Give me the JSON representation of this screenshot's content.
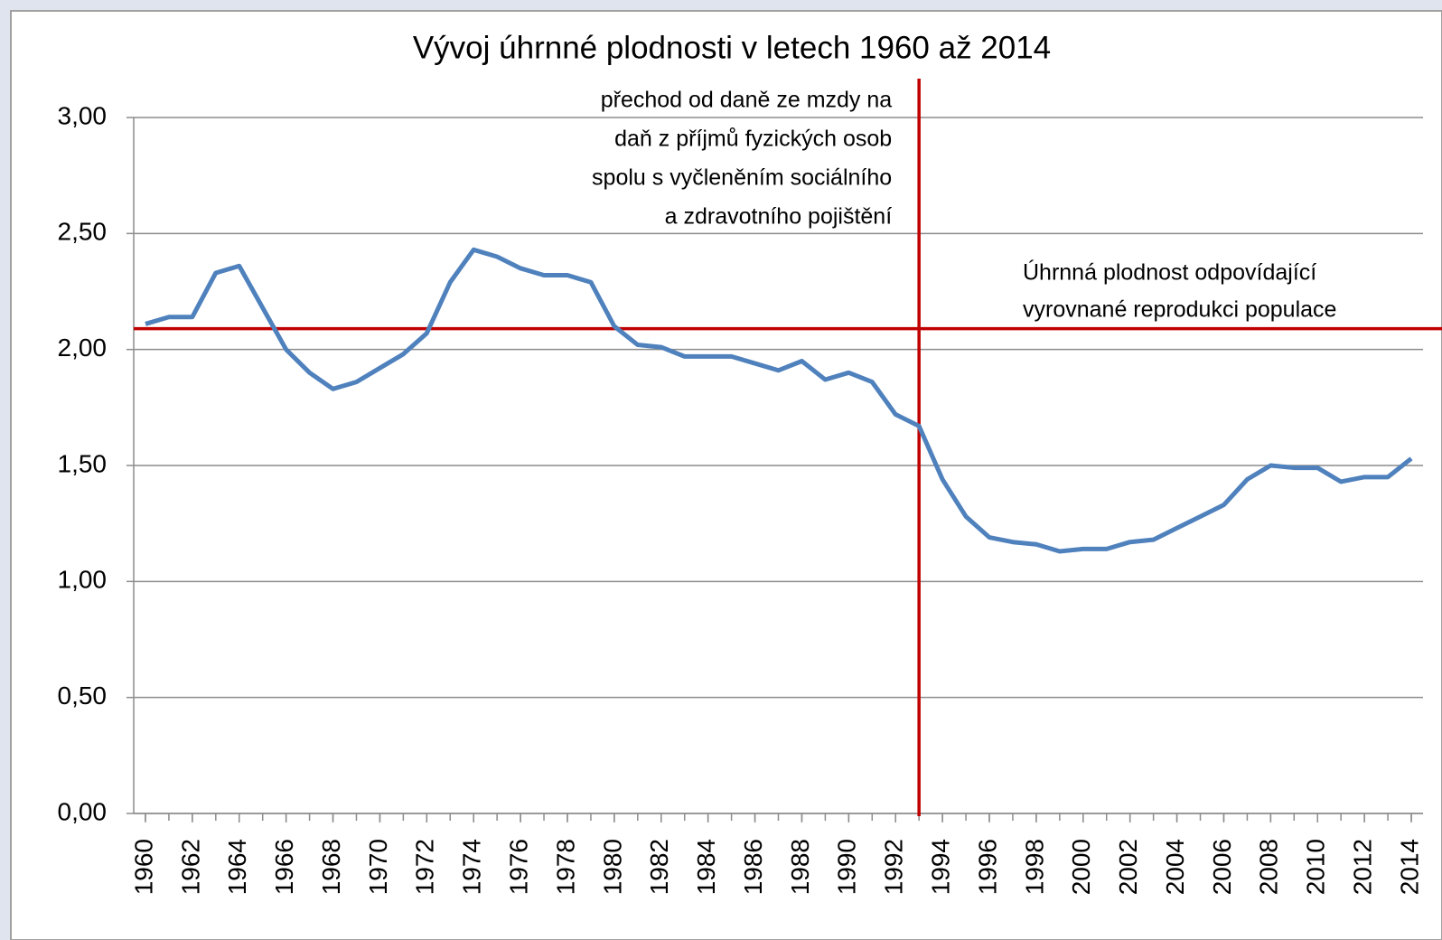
{
  "chart_data": {
    "type": "line",
    "title": "Vývoj úhrnné plodnosti v letech 1960 až 2014",
    "x": [
      1960,
      1961,
      1962,
      1963,
      1964,
      1965,
      1966,
      1967,
      1968,
      1969,
      1970,
      1971,
      1972,
      1973,
      1974,
      1975,
      1976,
      1977,
      1978,
      1979,
      1980,
      1981,
      1982,
      1983,
      1984,
      1985,
      1986,
      1987,
      1988,
      1989,
      1990,
      1991,
      1992,
      1993,
      1994,
      1995,
      1996,
      1997,
      1998,
      1999,
      2000,
      2001,
      2002,
      2003,
      2004,
      2005,
      2006,
      2007,
      2008,
      2009,
      2010,
      2011,
      2012,
      2013,
      2014
    ],
    "series": [
      {
        "color": "#4f81bd",
        "values": [
          2.11,
          2.14,
          2.14,
          2.33,
          2.36,
          2.18,
          2.0,
          1.9,
          1.83,
          1.86,
          1.92,
          1.98,
          2.07,
          2.29,
          2.43,
          2.4,
          2.35,
          2.32,
          2.32,
          2.29,
          2.1,
          2.02,
          2.01,
          1.97,
          1.97,
          1.97,
          1.94,
          1.91,
          1.95,
          1.87,
          1.9,
          1.86,
          1.72,
          1.67,
          1.44,
          1.28,
          1.19,
          1.17,
          1.16,
          1.13,
          1.14,
          1.14,
          1.17,
          1.18,
          1.23,
          1.28,
          1.33,
          1.44,
          1.5,
          1.49,
          1.49,
          1.43,
          1.45,
          1.45,
          1.53
        ]
      }
    ],
    "xlim": [
      1959.5,
      2014.5
    ],
    "xticks": [
      1960,
      1962,
      1964,
      1966,
      1968,
      1970,
      1972,
      1974,
      1976,
      1978,
      1980,
      1982,
      1984,
      1986,
      1988,
      1990,
      1992,
      1994,
      1996,
      1998,
      2000,
      2002,
      2004,
      2006,
      2008,
      2010,
      2012,
      2014
    ],
    "ylim": [
      0,
      3
    ],
    "yticks": [
      {
        "value": 0,
        "label": "0,00"
      },
      {
        "value": 0.5,
        "label": "0,50"
      },
      {
        "value": 1,
        "label": "1,00"
      },
      {
        "value": 1.5,
        "label": "1,50"
      },
      {
        "value": 2,
        "label": "2,00"
      },
      {
        "value": 2.5,
        "label": "2,50"
      },
      {
        "value": 3,
        "label": "3,00"
      }
    ],
    "grid": true,
    "hline": {
      "value": 2.09,
      "color": "#c00000",
      "label": [
        "Úhrnná plodnost odpovídající",
        "vyrovnané reprodukci populace"
      ]
    },
    "vline": {
      "value": 1993,
      "color": "#c00000",
      "label": [
        "přechod od daně ze mzdy na",
        "daň z příjmů fyzických osob",
        "spolu s vyčleněním sociálního",
        "a zdravotního pojištění"
      ]
    }
  }
}
